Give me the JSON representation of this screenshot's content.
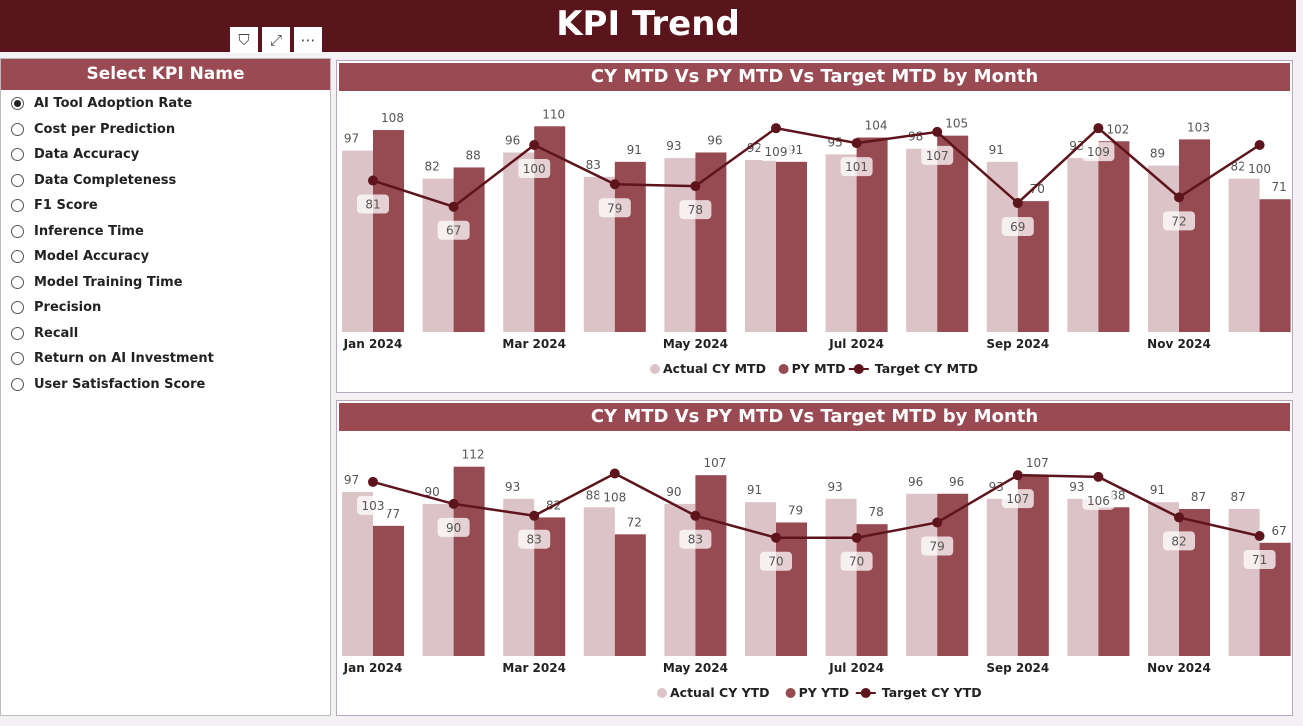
{
  "header": {
    "title": "KPI Trend"
  },
  "toolbar": {
    "filter_icon": "filter-icon",
    "focus_icon": "focus-mode-icon",
    "more_icon": "more-options-icon"
  },
  "slicer": {
    "title": "Select KPI Name",
    "selected": "AI Tool Adoption Rate",
    "items": [
      "AI Tool Adoption Rate",
      "Cost per Prediction",
      "Data Accuracy",
      "Data Completeness",
      "F1 Score",
      "Inference Time",
      "Model Accuracy",
      "Model Training Time",
      "Precision",
      "Recall",
      "Return on AI Investment",
      "User Satisfaction Score"
    ]
  },
  "colors": {
    "actual": "#dcc3c7",
    "py": "#964a52",
    "target": "#5e141c",
    "header": "#5a141c"
  },
  "chart_data": [
    {
      "type": "bar",
      "title": "CY MTD Vs PY MTD Vs Target MTD by Month",
      "categories": [
        "Jan 2024",
        "Feb 2024",
        "Mar 2024",
        "Apr 2024",
        "May 2024",
        "Jun 2024",
        "Jul 2024",
        "Aug 2024",
        "Sep 2024",
        "Oct 2024",
        "Nov 2024",
        "Dec 2024"
      ],
      "tick_labels": [
        "Jan 2024",
        "",
        "Mar 2024",
        "",
        "May 2024",
        "",
        "Jul 2024",
        "",
        "Sep 2024",
        "",
        "Nov 2024",
        ""
      ],
      "legend_position": "bottom",
      "series": [
        {
          "name": "Actual CY MTD",
          "type": "bar",
          "values": [
            97,
            82,
            96,
            83,
            93,
            92,
            95,
            98,
            91,
            93,
            89,
            82
          ]
        },
        {
          "name": "PY MTD",
          "type": "bar",
          "values": [
            108,
            88,
            110,
            91,
            96,
            91,
            104,
            105,
            70,
            102,
            103,
            71
          ]
        },
        {
          "name": "Target CY MTD",
          "type": "line",
          "values": [
            81,
            67,
            100,
            79,
            78,
            109,
            101,
            107,
            69,
            109,
            72,
            100
          ]
        }
      ],
      "ylim": [
        0,
        125
      ]
    },
    {
      "type": "bar",
      "title": "CY MTD Vs PY MTD Vs Target MTD by Month",
      "categories": [
        "Jan 2024",
        "Feb 2024",
        "Mar 2024",
        "Apr 2024",
        "May 2024",
        "Jun 2024",
        "Jul 2024",
        "Aug 2024",
        "Sep 2024",
        "Oct 2024",
        "Nov 2024",
        "Dec 2024"
      ],
      "tick_labels": [
        "Jan 2024",
        "",
        "Mar 2024",
        "",
        "May 2024",
        "",
        "Jul 2024",
        "",
        "Sep 2024",
        "",
        "Nov 2024",
        ""
      ],
      "legend_position": "bottom",
      "series": [
        {
          "name": "Actual CY YTD",
          "type": "bar",
          "values": [
            97,
            90,
            93,
            88,
            90,
            91,
            93,
            96,
            93,
            93,
            91,
            87
          ]
        },
        {
          "name": "PY YTD",
          "type": "bar",
          "values": [
            77,
            112,
            82,
            72,
            107,
            79,
            78,
            96,
            107,
            88,
            87,
            67
          ]
        },
        {
          "name": "Target CY YTD",
          "type": "line",
          "values": [
            103,
            90,
            83,
            108,
            83,
            70,
            70,
            79,
            107,
            106,
            82,
            71
          ]
        }
      ],
      "ylim": [
        0,
        120
      ]
    }
  ]
}
